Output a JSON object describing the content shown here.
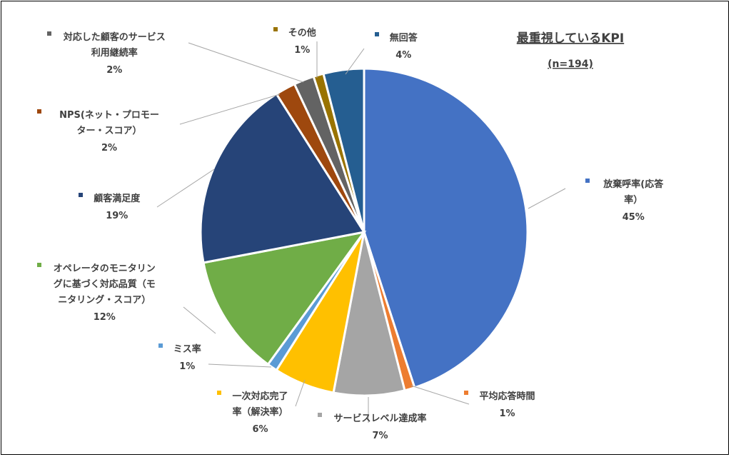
{
  "chart_data": {
    "type": "pie",
    "title": "最重視しているKPI",
    "subtitle": "(n=194)",
    "slices": [
      {
        "label": "放棄呼率(応答率）",
        "label_lines": [
          "放棄呼率(応答",
          "率）"
        ],
        "value_label": "45%",
        "value": 45,
        "color": "#4472c4"
      },
      {
        "label": "平均応答時間",
        "label_lines": [
          "平均応答時間"
        ],
        "value_label": "1%",
        "value": 1,
        "color": "#ed7d31"
      },
      {
        "label": "サービスレベル達成率",
        "label_lines": [
          "サービスレベル達成率"
        ],
        "value_label": "7%",
        "value": 7,
        "color": "#a5a5a5"
      },
      {
        "label": "一次対応完了率（解決率）",
        "label_lines": [
          "一次対応完了",
          "率（解決率）"
        ],
        "value_label": "6%",
        "value": 6,
        "color": "#ffc000"
      },
      {
        "label": "ミス率",
        "label_lines": [
          "ミス率"
        ],
        "value_label": "1%",
        "value": 1,
        "color": "#5b9bd5"
      },
      {
        "label": "オペレータのモニタリングに基づく対応品質（モニタリング・スコア）",
        "label_lines": [
          "オペレータのモニタリン",
          "グに基づく対応品質（モ",
          "ニタリング・スコア）"
        ],
        "value_label": "12%",
        "value": 12,
        "color": "#70ad47"
      },
      {
        "label": "顧客満足度",
        "label_lines": [
          "顧客満足度"
        ],
        "value_label": "19%",
        "value": 19,
        "color": "#264478"
      },
      {
        "label": "NPS(ネット・プロモーター・スコア）",
        "label_lines": [
          "NPS(ネット・プロモー",
          "ター・スコア）"
        ],
        "value_label": "2%",
        "value": 2,
        "color": "#9e480e"
      },
      {
        "label": "対応した顧客のサービス利用継続率",
        "label_lines": [
          "対応した顧客のサービス",
          "利用継続率"
        ],
        "value_label": "2%",
        "value": 2,
        "color": "#636363"
      },
      {
        "label": "その他",
        "label_lines": [
          "その他"
        ],
        "value_label": "1%",
        "value": 1,
        "color": "#997300"
      },
      {
        "label": "無回答",
        "label_lines": [
          "無回答"
        ],
        "value_label": "4%",
        "value": 4,
        "color": "#255e91"
      }
    ],
    "start_angle_deg": 0,
    "direction": "clockwise",
    "legend": "none",
    "data_labels": "outside with leader lines"
  }
}
